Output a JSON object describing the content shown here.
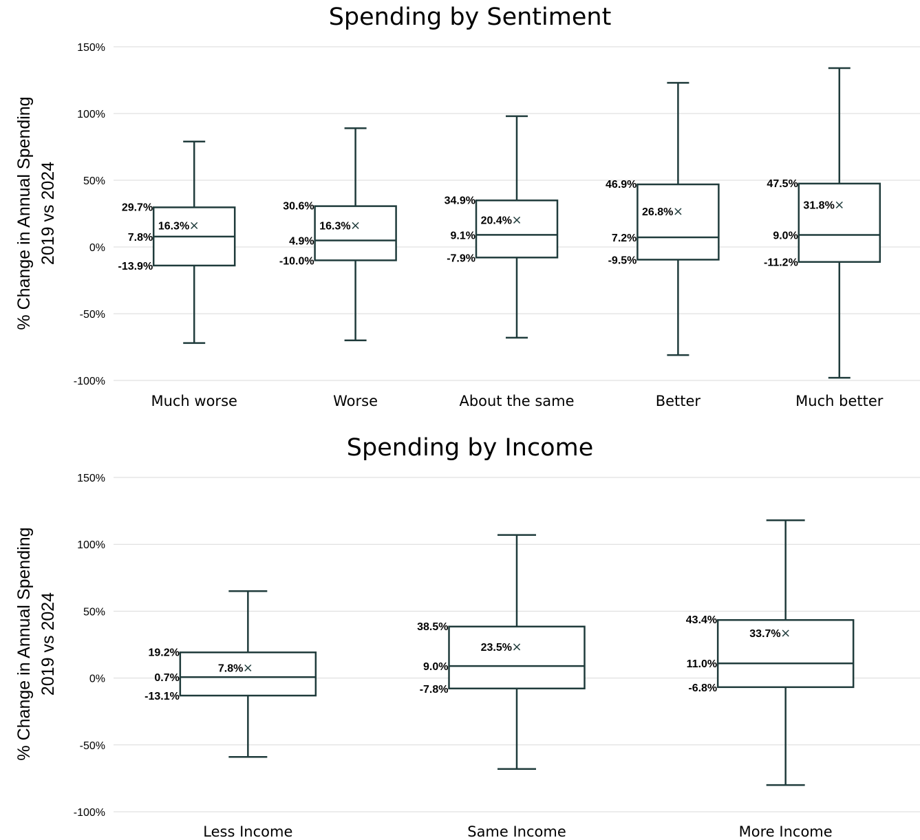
{
  "chart_data": [
    {
      "type": "box",
      "title": "Spending by Sentiment",
      "ylabel": [
        "% Change in Annual Spending",
        "2019 vs 2024"
      ],
      "ylim": [
        -100,
        150
      ],
      "yticks": [
        -100,
        -50,
        0,
        50,
        100,
        150
      ],
      "ytick_labels": [
        "-100%",
        "-50%",
        "0%",
        "50%",
        "100%",
        "150%"
      ],
      "grid": true,
      "categories": [
        "Much worse",
        "Worse",
        "About the same",
        "Better",
        "Much better"
      ],
      "boxes": [
        {
          "category": "Much worse",
          "min": -72,
          "q1": -13.9,
          "median": 7.8,
          "q3": 29.7,
          "max": 79,
          "mean": 16.3,
          "labels": {
            "q1": "-13.9%",
            "median": "7.8%",
            "q3": "29.7%",
            "mean": "16.3%"
          }
        },
        {
          "category": "Worse",
          "min": -70,
          "q1": -10.0,
          "median": 4.9,
          "q3": 30.6,
          "max": 89,
          "mean": 16.3,
          "labels": {
            "q1": "-10.0%",
            "median": "4.9%",
            "q3": "30.6%",
            "mean": "16.3%"
          }
        },
        {
          "category": "About the same",
          "min": -68,
          "q1": -7.9,
          "median": 9.1,
          "q3": 34.9,
          "max": 98,
          "mean": 20.4,
          "labels": {
            "q1": "-7.9%",
            "median": "9.1%",
            "q3": "34.9%",
            "mean": "20.4%"
          }
        },
        {
          "category": "Better",
          "min": -81,
          "q1": -9.5,
          "median": 7.2,
          "q3": 46.9,
          "max": 123,
          "mean": 26.8,
          "labels": {
            "q1": "-9.5%",
            "median": "7.2%",
            "q3": "46.9%",
            "mean": "26.8%"
          }
        },
        {
          "category": "Much better",
          "min": -98,
          "q1": -11.2,
          "median": 9.0,
          "q3": 47.5,
          "max": 134,
          "mean": 31.8,
          "labels": {
            "q1": "-11.2%",
            "median": "9.0%",
            "q3": "47.5%",
            "mean": "31.8%"
          }
        }
      ]
    },
    {
      "type": "box",
      "title": "Spending by Income",
      "ylabel": [
        "% Change in Annual Spending",
        "2019 vs 2024"
      ],
      "ylim": [
        -100,
        150
      ],
      "yticks": [
        -100,
        -50,
        0,
        50,
        100,
        150
      ],
      "ytick_labels": [
        "-100%",
        "-50%",
        "0%",
        "50%",
        "100%",
        "150%"
      ],
      "grid": true,
      "categories": [
        "Less Income",
        "Same Income",
        "More Income"
      ],
      "boxes": [
        {
          "category": "Less Income",
          "min": -59,
          "q1": -13.1,
          "median": 0.7,
          "q3": 19.2,
          "max": 65,
          "mean": 7.8,
          "labels": {
            "q1": "-13.1%",
            "median": "0.7%",
            "q3": "19.2%",
            "mean": "7.8%"
          }
        },
        {
          "category": "Same Income",
          "min": -68,
          "q1": -7.8,
          "median": 9.0,
          "q3": 38.5,
          "max": 107,
          "mean": 23.5,
          "labels": {
            "q1": "-7.8%",
            "median": "9.0%",
            "q3": "38.5%",
            "mean": "23.5%"
          }
        },
        {
          "category": "More Income",
          "min": -80,
          "q1": -6.8,
          "median": 11.0,
          "q3": 43.4,
          "max": 118,
          "mean": 33.7,
          "labels": {
            "q1": "-6.8%",
            "median": "11.0%",
            "q3": "43.4%",
            "mean": "33.7%"
          }
        }
      ]
    }
  ]
}
